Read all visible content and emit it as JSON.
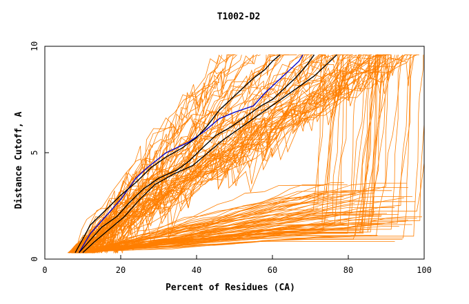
{
  "chart_data": {
    "type": "line",
    "title": "T1002-D2",
    "xlabel": "Percent of Residues (CA)",
    "ylabel": "Distance Cutoff, A",
    "xlim": [
      0,
      100
    ],
    "ylim": [
      0,
      10
    ],
    "xticks": [
      0,
      20,
      40,
      60,
      80,
      100
    ],
    "yticks": [
      0,
      5,
      10
    ],
    "xtick_labels": [
      "0",
      "20",
      "40",
      "60",
      "80",
      "100"
    ],
    "ytick_labels": [
      "0",
      "5",
      "10"
    ],
    "grid": false,
    "colors": {
      "background_models": "#ff7f00",
      "highlight_1": "#0000cc",
      "highlight_2": "#000000"
    },
    "background_model_count": 150,
    "highlight_series": [
      {
        "name": "highlight-blue",
        "color": "#0000cc",
        "x": [
          9,
          12,
          16,
          20,
          22,
          24,
          27,
          32,
          38,
          42,
          46,
          50,
          55,
          58,
          61,
          64,
          67,
          68
        ],
        "y": [
          0.3,
          1.2,
          2.0,
          2.8,
          3.3,
          3.8,
          4.3,
          5.0,
          5.5,
          6.0,
          6.6,
          6.9,
          7.2,
          7.8,
          8.3,
          8.8,
          9.3,
          9.6
        ]
      },
      {
        "name": "highlight-black-1",
        "color": "#000000",
        "x": [
          9,
          12,
          15,
          19,
          22,
          26,
          30,
          35,
          38,
          42,
          45,
          49,
          53,
          57,
          60,
          63,
          66,
          69,
          71
        ],
        "y": [
          0.3,
          0.9,
          1.5,
          2.0,
          2.6,
          3.3,
          3.8,
          4.2,
          4.6,
          5.3,
          5.8,
          6.2,
          6.7,
          7.2,
          7.5,
          8.0,
          8.5,
          9.1,
          9.6
        ]
      },
      {
        "name": "highlight-black-2",
        "color": "#000000",
        "x": [
          10,
          13,
          17,
          21,
          25,
          29,
          34,
          39,
          43,
          47,
          51,
          55,
          59,
          63,
          67,
          71,
          74,
          77
        ],
        "y": [
          0.3,
          0.8,
          1.4,
          2.0,
          2.8,
          3.5,
          4.0,
          4.4,
          5.0,
          5.6,
          6.1,
          6.6,
          7.1,
          7.6,
          8.1,
          8.6,
          9.1,
          9.6
        ]
      },
      {
        "name": "highlight-black-3",
        "color": "#000000",
        "x": [
          8,
          12,
          16,
          20,
          24,
          28,
          32,
          36,
          40,
          43,
          46,
          49,
          52,
          55,
          58,
          60,
          62
        ],
        "y": [
          0.3,
          1.6,
          2.3,
          3.0,
          3.6,
          4.3,
          4.8,
          5.2,
          5.7,
          6.3,
          7.0,
          7.5,
          8.0,
          8.5,
          8.9,
          9.3,
          9.6
        ]
      }
    ]
  }
}
